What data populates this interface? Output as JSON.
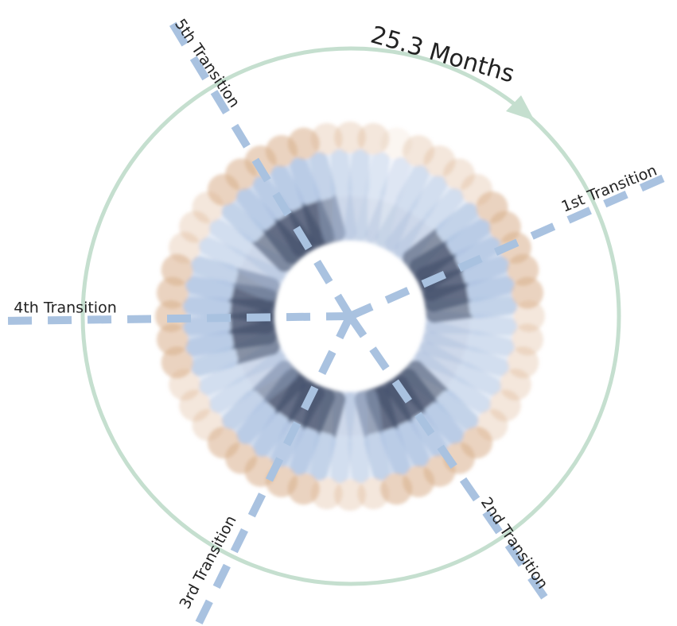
{
  "annotation": "25.3 Months",
  "transitions": [
    "1st Transition",
    "2nd Transition",
    "3rd Transition",
    "4th Transition",
    "5th Transition"
  ]
}
